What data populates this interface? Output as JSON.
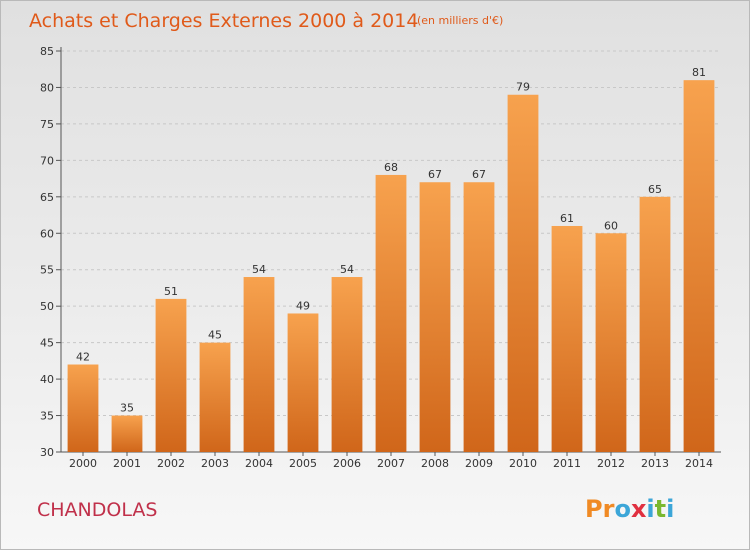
{
  "chart_data": {
    "type": "bar",
    "title": "Achats et Charges Externes 2000 à 2014",
    "subtitle": "(en milliers d'€)",
    "categories": [
      "2000",
      "2001",
      "2002",
      "2003",
      "2004",
      "2005",
      "2006",
      "2007",
      "2008",
      "2009",
      "2010",
      "2011",
      "2012",
      "2013",
      "2014"
    ],
    "values": [
      42,
      35,
      51,
      45,
      54,
      49,
      54,
      68,
      67,
      67,
      79,
      61,
      60,
      65,
      81
    ],
    "xlabel": "",
    "ylabel": "",
    "ylim": [
      30,
      85
    ],
    "yticks": [
      30,
      35,
      40,
      45,
      50,
      55,
      60,
      65,
      70,
      75,
      80,
      85
    ],
    "grid": true,
    "legend": "none"
  },
  "footer": {
    "place": "CHANDOLAS",
    "logo": "Proxiti"
  },
  "colors": {
    "bar_top": "#f7a24e",
    "bar_bottom": "#d0661a",
    "title": "#e05a1a",
    "place": "#c0304a",
    "logo_letters": [
      "#f08a24",
      "#f08a24",
      "#3ca6d8",
      "#e03040",
      "#3ca6d8",
      "#7ab830",
      "#3ca6d8"
    ]
  }
}
